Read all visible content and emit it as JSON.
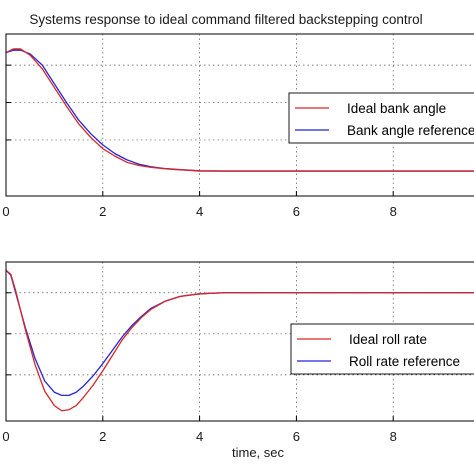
{
  "colors": {
    "ideal": "#d62728",
    "reference": "#2525d8"
  },
  "chart_data": [
    {
      "type": "line",
      "title": "Systems response to ideal command filtered backstepping control",
      "xlabel": "",
      "ylabel": "",
      "xlim": [
        0,
        10
      ],
      "ylim": [
        -0.2,
        1.1
      ],
      "grid": true,
      "xticks": [
        0,
        2,
        4,
        6,
        8
      ],
      "xtick_labels": [
        "0",
        "2",
        "4",
        "6",
        "8"
      ],
      "ygrid": [
        0.25,
        0.55,
        0.85
      ],
      "legend_placement": "right",
      "series": [
        {
          "name": "Ideal bank angle",
          "color": "#d62728",
          "x": [
            0,
            0.15,
            0.3,
            0.5,
            0.75,
            1.0,
            1.25,
            1.5,
            1.75,
            2.0,
            2.25,
            2.5,
            2.75,
            3.0,
            3.25,
            3.5,
            3.75,
            4.0,
            4.5,
            5.0,
            6.0,
            8.0,
            10.0
          ],
          "y": [
            0.95,
            0.98,
            0.98,
            0.93,
            0.82,
            0.67,
            0.52,
            0.38,
            0.27,
            0.18,
            0.12,
            0.07,
            0.045,
            0.03,
            0.02,
            0.012,
            0.007,
            0.0,
            0.0,
            0.0,
            0.0,
            0.0,
            0.0
          ]
        },
        {
          "name": "Bank angle reference",
          "color": "#2525d8",
          "x": [
            0,
            0.15,
            0.3,
            0.5,
            0.75,
            1.0,
            1.25,
            1.5,
            1.75,
            2.0,
            2.25,
            2.5,
            2.75,
            3.0,
            3.25,
            3.5,
            3.75,
            4.0,
            4.5,
            5.0,
            6.0,
            8.0,
            10.0
          ],
          "y": [
            0.95,
            0.97,
            0.97,
            0.94,
            0.85,
            0.7,
            0.55,
            0.41,
            0.3,
            0.21,
            0.14,
            0.09,
            0.055,
            0.035,
            0.022,
            0.014,
            0.008,
            0.002,
            0.0,
            0.0,
            0.0,
            0.0,
            0.0
          ]
        }
      ],
      "legend": [
        "Ideal bank angle",
        "Bank angle reference"
      ]
    },
    {
      "type": "line",
      "title": "",
      "xlabel": "time, sec",
      "ylabel": "",
      "xlim": [
        0,
        10
      ],
      "ylim": [
        -1.25,
        0.3
      ],
      "grid": true,
      "xticks": [
        0,
        2,
        4,
        6,
        8
      ],
      "xtick_labels": [
        "0",
        "2",
        "4",
        "6",
        "8"
      ],
      "ygrid": [
        0.0,
        -0.4,
        -0.8
      ],
      "legend_placement": "right",
      "series": [
        {
          "name": "Ideal roll rate",
          "color": "#d62728",
          "x": [
            0,
            0.1,
            0.2,
            0.4,
            0.6,
            0.8,
            1.0,
            1.15,
            1.3,
            1.45,
            1.6,
            1.8,
            2.0,
            2.2,
            2.4,
            2.6,
            2.8,
            3.0,
            3.3,
            3.6,
            4.0,
            4.5,
            5.0,
            6.0,
            8.0,
            10.0
          ],
          "y": [
            0.22,
            0.18,
            0.02,
            -0.36,
            -0.7,
            -0.96,
            -1.1,
            -1.15,
            -1.14,
            -1.1,
            -1.02,
            -0.9,
            -0.76,
            -0.61,
            -0.46,
            -0.34,
            -0.24,
            -0.16,
            -0.08,
            -0.035,
            -0.01,
            0.0,
            0.0,
            0.0,
            0.0,
            0.0
          ]
        },
        {
          "name": "Roll rate reference",
          "color": "#2525d8",
          "x": [
            0,
            0.1,
            0.2,
            0.4,
            0.6,
            0.8,
            1.0,
            1.15,
            1.3,
            1.45,
            1.6,
            1.8,
            2.0,
            2.2,
            2.4,
            2.6,
            2.8,
            3.0,
            3.3,
            3.6,
            4.0,
            4.5,
            5.0,
            6.0,
            8.0,
            10.0
          ],
          "y": [
            0.22,
            0.17,
            0.0,
            -0.34,
            -0.64,
            -0.86,
            -0.97,
            -1.0,
            -1.0,
            -0.97,
            -0.91,
            -0.81,
            -0.69,
            -0.56,
            -0.43,
            -0.32,
            -0.23,
            -0.15,
            -0.08,
            -0.035,
            -0.01,
            0.0,
            0.0,
            0.0,
            0.0,
            0.0
          ]
        }
      ],
      "legend": [
        "Ideal roll rate",
        "Roll rate reference"
      ]
    }
  ]
}
